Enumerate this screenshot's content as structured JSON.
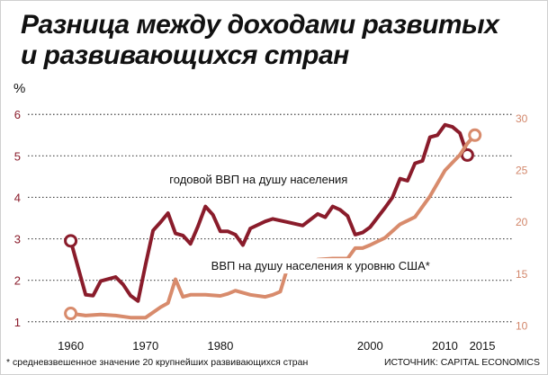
{
  "title": {
    "line1": "Разница между доходами развитых",
    "line2": "и развивающихся стран"
  },
  "footnote": "* средневзвешенное значение 20 крупнейших развивающихся стран",
  "source": "ИСТОЧНИК: CAPITAL ECONOMICS",
  "colors": {
    "series1": "#8a1c2b",
    "series2": "#d88b6c",
    "grid": "#444444"
  },
  "chart_data": {
    "type": "line",
    "left_unit": "%",
    "xlim": [
      1955,
      2018
    ],
    "ylim": [
      0.8,
      6.2
    ],
    "y2lim": [
      9.6,
      31.2
    ],
    "grid": "dotted horizontal",
    "yticks": [
      "1",
      "2",
      "3",
      "4",
      "5",
      "6"
    ],
    "y2ticks": [
      "10",
      "15",
      "20",
      "25",
      "30"
    ],
    "xticks": [
      "1960",
      "1970",
      "1980",
      "2000",
      "2010",
      "2015"
    ],
    "xtick_values": [
      1960,
      1970,
      1980,
      2000,
      2010,
      2015
    ],
    "series": [
      {
        "name": "годовой ВВП на душу населения",
        "axis": "left",
        "label_at": [
          1997,
          4.33
        ],
        "points": [
          [
            1960,
            2.95
          ],
          [
            1962,
            1.65
          ],
          [
            1963,
            1.63
          ],
          [
            1964,
            1.98
          ],
          [
            1966,
            2.08
          ],
          [
            1967,
            1.9
          ],
          [
            1968,
            1.63
          ],
          [
            1969,
            1.5
          ],
          [
            1970,
            2.38
          ],
          [
            1971,
            3.2
          ],
          [
            1972,
            3.4
          ],
          [
            1973,
            3.62
          ],
          [
            1974,
            3.13
          ],
          [
            1975,
            3.08
          ],
          [
            1976,
            2.88
          ],
          [
            1977,
            3.3
          ],
          [
            1978,
            3.78
          ],
          [
            1979,
            3.58
          ],
          [
            1980,
            3.18
          ],
          [
            1981,
            3.18
          ],
          [
            1982,
            3.1
          ],
          [
            1983,
            2.85
          ],
          [
            1984,
            3.25
          ],
          [
            1986,
            3.42
          ],
          [
            1987,
            3.48
          ],
          [
            1989,
            3.4
          ],
          [
            1991,
            3.32
          ],
          [
            1993,
            3.6
          ],
          [
            1994,
            3.52
          ],
          [
            1995,
            3.78
          ],
          [
            1996,
            3.7
          ],
          [
            1997,
            3.55
          ],
          [
            1998,
            3.1
          ],
          [
            1999,
            3.15
          ],
          [
            2000,
            3.28
          ],
          [
            2002,
            3.75
          ],
          [
            2003,
            4.0
          ],
          [
            2004,
            4.45
          ],
          [
            2005,
            4.4
          ],
          [
            2006,
            4.82
          ],
          [
            2007,
            4.88
          ],
          [
            2008,
            5.45
          ],
          [
            2009,
            5.5
          ],
          [
            2010,
            5.75
          ],
          [
            2011,
            5.7
          ],
          [
            2012,
            5.55
          ],
          [
            2013,
            5.02
          ]
        ]
      },
      {
        "name": "ВВП на душу населения к уровню США*",
        "axis": "right",
        "label_at": [
          2008,
          15.4
        ],
        "points": [
          [
            1960,
            11.2
          ],
          [
            1962,
            11.0
          ],
          [
            1964,
            11.1
          ],
          [
            1966,
            11.0
          ],
          [
            1968,
            10.8
          ],
          [
            1970,
            10.8
          ],
          [
            1972,
            11.8
          ],
          [
            1973,
            12.2
          ],
          [
            1974,
            14.5
          ],
          [
            1975,
            12.8
          ],
          [
            1976,
            13.0
          ],
          [
            1978,
            13.0
          ],
          [
            1980,
            12.9
          ],
          [
            1981,
            13.1
          ],
          [
            1982,
            13.4
          ],
          [
            1984,
            13.0
          ],
          [
            1986,
            12.8
          ],
          [
            1987,
            13.0
          ],
          [
            1988,
            13.3
          ],
          [
            1989,
            15.7
          ],
          [
            1990,
            15.8
          ],
          [
            1992,
            15.9
          ],
          [
            1993,
            16.4
          ],
          [
            1995,
            16.5
          ],
          [
            1997,
            16.5
          ],
          [
            1998,
            17.5
          ],
          [
            1999,
            17.5
          ],
          [
            2000,
            17.8
          ],
          [
            2002,
            18.5
          ],
          [
            2004,
            19.8
          ],
          [
            2006,
            20.5
          ],
          [
            2008,
            22.5
          ],
          [
            2010,
            25.0
          ],
          [
            2012,
            26.5
          ],
          [
            2013,
            27.6
          ],
          [
            2014,
            28.4
          ]
        ]
      }
    ]
  }
}
